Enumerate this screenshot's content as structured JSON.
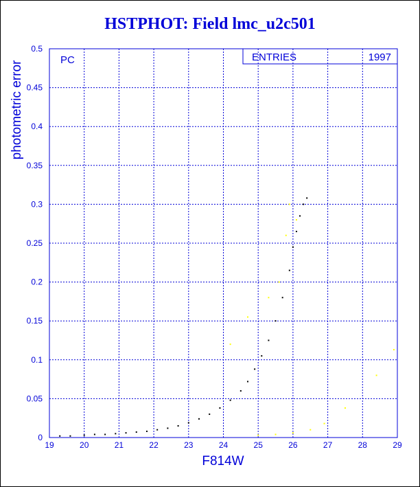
{
  "chart_data": {
    "type": "scatter",
    "title": "HSTPHOT: Field lmc_u2c501",
    "xlabel": "F814W",
    "ylabel": "photometric error",
    "panel_label": "PC",
    "stats_box": {
      "label": "ENTRIES",
      "value": "1997"
    },
    "xlim": [
      19,
      29
    ],
    "ylim": [
      0,
      0.5
    ],
    "x_ticks": [
      "19",
      "20",
      "21",
      "22",
      "23",
      "24",
      "25",
      "26",
      "27",
      "28",
      "29"
    ],
    "y_ticks": [
      "0",
      "0.05",
      "0.1",
      "0.15",
      "0.2",
      "0.25",
      "0.3",
      "0.35",
      "0.4",
      "0.45",
      "0.5"
    ],
    "grid": true,
    "series": [
      {
        "color": "#000000",
        "points": [
          [
            19.3,
            0.002
          ],
          [
            19.6,
            0.002
          ],
          [
            20.0,
            0.003
          ],
          [
            20.3,
            0.004
          ],
          [
            20.6,
            0.004
          ],
          [
            20.9,
            0.005
          ],
          [
            21.2,
            0.006
          ],
          [
            21.5,
            0.007
          ],
          [
            21.8,
            0.008
          ],
          [
            22.1,
            0.01
          ],
          [
            22.4,
            0.012
          ],
          [
            22.7,
            0.015
          ],
          [
            23.0,
            0.019
          ],
          [
            23.3,
            0.024
          ],
          [
            23.6,
            0.03
          ],
          [
            23.9,
            0.038
          ],
          [
            24.2,
            0.048
          ],
          [
            24.5,
            0.06
          ],
          [
            24.7,
            0.072
          ],
          [
            24.9,
            0.088
          ],
          [
            25.1,
            0.105
          ],
          [
            25.3,
            0.125
          ],
          [
            25.5,
            0.15
          ],
          [
            25.7,
            0.18
          ],
          [
            25.9,
            0.215
          ],
          [
            26.0,
            0.245
          ],
          [
            26.1,
            0.265
          ],
          [
            26.2,
            0.285
          ],
          [
            26.3,
            0.3
          ],
          [
            26.4,
            0.308
          ]
        ]
      },
      {
        "color": "#ffff00",
        "points": [
          [
            25.0,
            0.003
          ],
          [
            25.5,
            0.004
          ],
          [
            26.0,
            0.006
          ],
          [
            26.5,
            0.01
          ],
          [
            26.9,
            0.018
          ],
          [
            27.5,
            0.038
          ],
          [
            28.4,
            0.08
          ],
          [
            28.9,
            0.113
          ],
          [
            24.2,
            0.12
          ],
          [
            24.7,
            0.155
          ],
          [
            25.3,
            0.18
          ],
          [
            25.6,
            0.2
          ],
          [
            25.8,
            0.26
          ],
          [
            25.9,
            0.3
          ],
          [
            26.1,
            0.28
          ]
        ]
      }
    ]
  }
}
